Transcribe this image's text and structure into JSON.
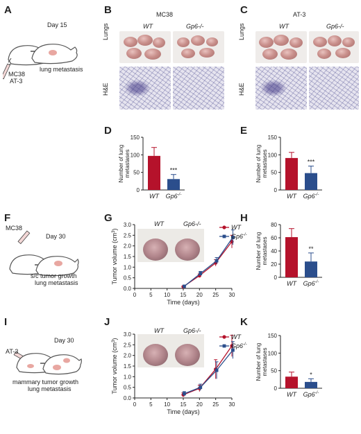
{
  "panels": {
    "A": {
      "label": "A",
      "time": "Day 15",
      "cells": [
        "MC38",
        "AT-3"
      ],
      "outcome": "lung metastasis"
    },
    "B": {
      "label": "B",
      "title": "MC38",
      "genotypes": [
        "WT",
        "Gp6-/-"
      ],
      "rows": [
        "Lungs",
        "H&E"
      ]
    },
    "C": {
      "label": "C",
      "title": "AT-3",
      "genotypes": [
        "WT",
        "Gp6-/-"
      ],
      "rows": [
        "Lungs",
        "H&E"
      ]
    },
    "F": {
      "label": "F",
      "cells": "MC38",
      "time": "Day 30",
      "outcome_1": "s/c tumor growth",
      "outcome_2": "lung metastasis"
    },
    "I": {
      "label": "I",
      "cells": "AT-3",
      "time": "Day 30",
      "outcome_1": "mammary tumor growth",
      "outcome_2": "lung metastasis"
    },
    "G": {
      "label": "G",
      "inset": [
        "WT",
        "Gp6-/-"
      ]
    },
    "J": {
      "label": "J",
      "inset": [
        "WT",
        "Gp6-/-"
      ]
    },
    "D": {
      "label": "D"
    },
    "E": {
      "label": "E"
    },
    "H": {
      "label": "H"
    },
    "K": {
      "label": "K"
    }
  },
  "colors": {
    "wt": "#b5122b",
    "ko": "#2b4e8c"
  },
  "chart_data": [
    {
      "panel": "D",
      "type": "bar",
      "categories": [
        "WT",
        "Gp6-/-"
      ],
      "values": [
        97,
        31
      ],
      "errors": [
        24,
        13
      ],
      "ylim": [
        0,
        150
      ],
      "yticks": [
        0,
        50,
        100,
        150
      ],
      "ylabel": "Number of lung metastases",
      "significance": "***"
    },
    {
      "panel": "E",
      "type": "bar",
      "categories": [
        "WT",
        "Gp6-/-"
      ],
      "values": [
        91,
        48
      ],
      "errors": [
        16,
        20
      ],
      "ylim": [
        0,
        150
      ],
      "yticks": [
        0,
        50,
        100,
        150
      ],
      "ylabel": "Number of lung metastases",
      "significance": "***"
    },
    {
      "panel": "H",
      "type": "bar",
      "categories": [
        "WT",
        "Gp6-/-"
      ],
      "values": [
        61,
        24
      ],
      "errors": [
        13,
        13
      ],
      "ylim": [
        0,
        80
      ],
      "yticks": [
        0,
        20,
        40,
        60,
        80
      ],
      "ylabel": "Number of lung metastases",
      "significance": "**"
    },
    {
      "panel": "K",
      "type": "bar",
      "categories": [
        "WT",
        "Gp6-/-"
      ],
      "values": [
        33,
        18
      ],
      "errors": [
        13,
        9
      ],
      "ylim": [
        0,
        150
      ],
      "yticks": [
        0,
        50,
        100,
        150
      ],
      "ylabel": "Number of lung metastases",
      "significance": "*"
    },
    {
      "panel": "G",
      "type": "line",
      "xlabel": "Time (days)",
      "ylabel": "Tumor volume (cm3)",
      "xlim": [
        0,
        30
      ],
      "ylim": [
        0,
        3.0
      ],
      "xticks": [
        0,
        5,
        10,
        15,
        20,
        25,
        30
      ],
      "yticks": [
        0,
        0.5,
        1.0,
        1.5,
        2.0,
        2.5,
        3.0
      ],
      "legend": "top-right",
      "series": [
        {
          "name": "WT",
          "x": [
            15,
            20,
            25,
            30
          ],
          "y": [
            0.08,
            0.6,
            1.2,
            2.2
          ],
          "err": [
            0.03,
            0.08,
            0.15,
            0.3
          ]
        },
        {
          "name": "Gp6-/-",
          "x": [
            15,
            20,
            25,
            30
          ],
          "y": [
            0.1,
            0.7,
            1.3,
            2.4
          ],
          "err": [
            0.03,
            0.1,
            0.15,
            0.35
          ]
        }
      ]
    },
    {
      "panel": "J",
      "type": "line",
      "xlabel": "Time (days)",
      "ylabel": "Tumor volume (cm3)",
      "xlim": [
        0,
        30
      ],
      "ylim": [
        0,
        3.0
      ],
      "xticks": [
        0,
        5,
        10,
        15,
        20,
        25,
        30
      ],
      "yticks": [
        0,
        0.5,
        1.0,
        1.5,
        2.0,
        2.5,
        3.0
      ],
      "legend": "top-right",
      "series": [
        {
          "name": "WT",
          "x": [
            15,
            20,
            25,
            30
          ],
          "y": [
            0.15,
            0.45,
            1.35,
            2.45
          ],
          "err": [
            0.1,
            0.15,
            0.45,
            0.5
          ]
        },
        {
          "name": "Gp6-/-",
          "x": [
            15,
            20,
            25,
            30
          ],
          "y": [
            0.2,
            0.5,
            1.3,
            2.25
          ],
          "err": [
            0.1,
            0.15,
            0.4,
            0.4
          ]
        }
      ]
    }
  ]
}
